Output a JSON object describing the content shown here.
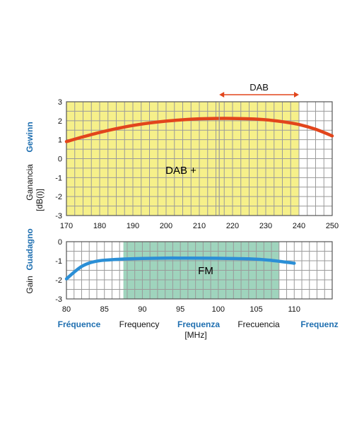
{
  "chart_data": [
    {
      "type": "line",
      "xlim": [
        170,
        250
      ],
      "ylim": [
        -3,
        3
      ],
      "x_ticks": [
        "170",
        "180",
        "190",
        "200",
        "210",
        "220",
        "230",
        "240",
        "250"
      ],
      "y_ticks": [
        "3",
        "2",
        "1",
        "0",
        "-1",
        "-2",
        "-3"
      ],
      "band": {
        "label": "DAB +",
        "x_range": [
          170,
          240
        ],
        "color": "#f6f08a"
      },
      "range_marker": {
        "label": "DAB",
        "x_range": [
          216,
          240
        ]
      },
      "series": [
        {
          "color": "#e2451c",
          "x": [
            170,
            175,
            180,
            185,
            190,
            195,
            200,
            205,
            210,
            215,
            220,
            225,
            230,
            235,
            240,
            245,
            250
          ],
          "y": [
            0.9,
            1.15,
            1.38,
            1.58,
            1.75,
            1.88,
            1.98,
            2.05,
            2.1,
            2.12,
            2.12,
            2.1,
            2.05,
            1.95,
            1.8,
            1.55,
            1.2
          ]
        }
      ]
    },
    {
      "type": "line",
      "xlim": [
        80,
        115
      ],
      "ylim": [
        -3,
        0
      ],
      "x_ticks": [
        "80",
        "85",
        "90",
        "95",
        "100",
        "105",
        "110"
      ],
      "y_ticks": [
        "0",
        "-1",
        "-2",
        "-3"
      ],
      "band": {
        "label": "FM",
        "x_range": [
          87.5,
          108
        ],
        "color": "#9fd4bd"
      },
      "series": [
        {
          "color": "#2b8fd6",
          "x": [
            80,
            81,
            82,
            83,
            84,
            85,
            87,
            90,
            93,
            96,
            100,
            104,
            107,
            110
          ],
          "y": [
            -1.95,
            -1.6,
            -1.3,
            -1.12,
            -1.02,
            -0.97,
            -0.92,
            -0.88,
            -0.86,
            -0.86,
            -0.87,
            -0.9,
            -0.98,
            -1.13
          ]
        }
      ]
    }
  ],
  "y_axis_labels": [
    {
      "text": "Gewinn",
      "color": "blue"
    },
    {
      "text": "Ganancia",
      "color": "black"
    },
    {
      "text": "[dB(i)]",
      "color": "black"
    },
    {
      "text": "Guadagno",
      "color": "blue"
    },
    {
      "text": "Gain",
      "color": "black"
    }
  ],
  "x_axis_labels": [
    {
      "text": "Fréquence",
      "color": "blue"
    },
    {
      "text": "Frequency",
      "color": "black"
    },
    {
      "text": "Frequenza",
      "color": "blue"
    },
    {
      "text": "Frecuencia",
      "color": "black"
    },
    {
      "text": "Frequenz",
      "color": "blue"
    }
  ],
  "x_unit": "[MHz]",
  "colors": {
    "grid": "#9a9a9a",
    "frame": "#555555",
    "blue_text": "#1f6fb0"
  }
}
